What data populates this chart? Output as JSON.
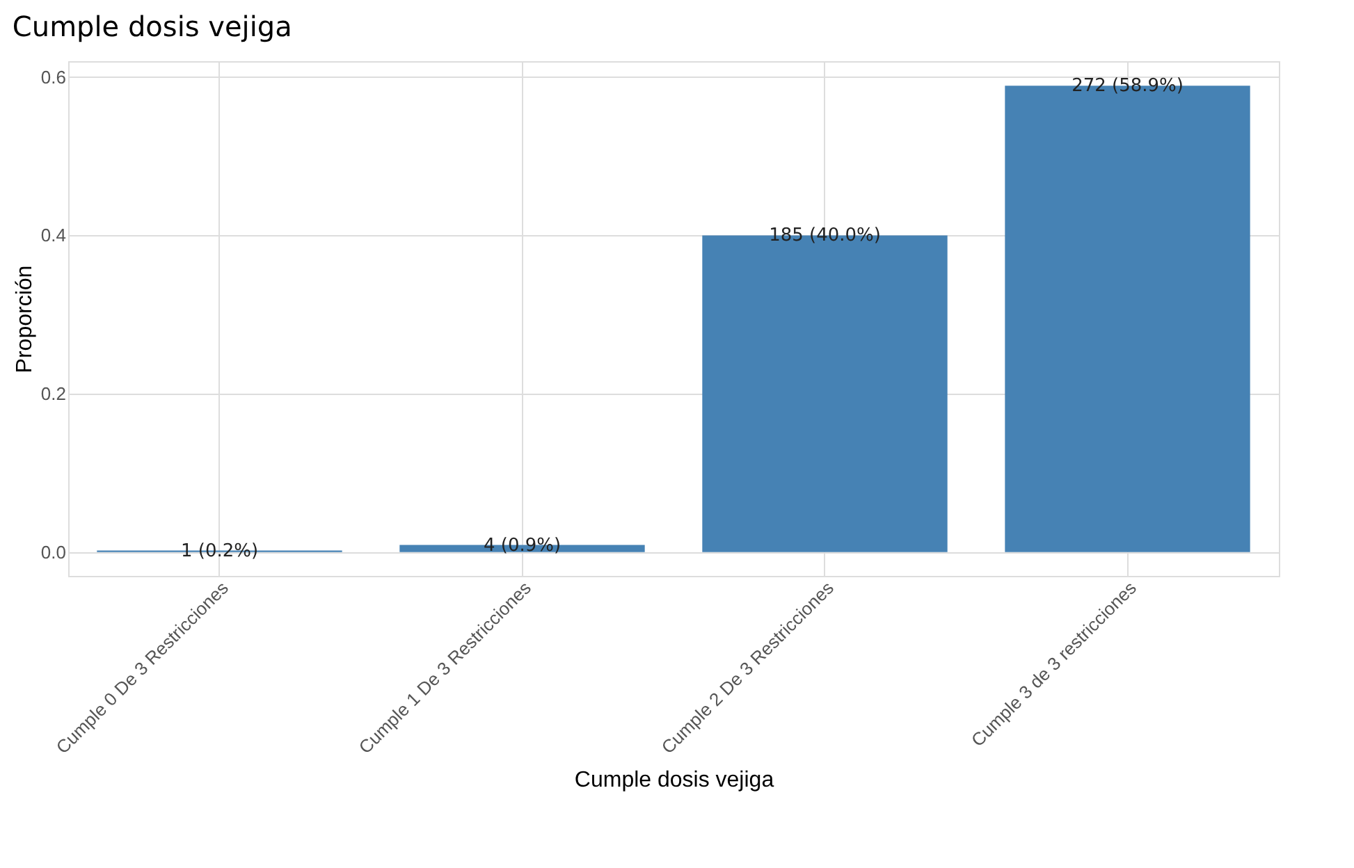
{
  "chart_data": {
    "type": "bar",
    "title": "Cumple dosis vejiga",
    "xlabel": "Cumple dosis vejiga",
    "ylabel": "Proporción",
    "categories": [
      "Cumple 0 De 3 Restricciones",
      "Cumple 1 De 3 Restricciones",
      "Cumple 2 De 3 Restricciones",
      "Cumple 3 de 3 restricciones"
    ],
    "values": [
      0.002,
      0.009,
      0.4,
      0.589
    ],
    "value_labels": [
      "1 (0.2%)",
      "4 (0.9%)",
      "185 (40.0%)",
      "272 (58.9%)"
    ],
    "color": "#4682b4",
    "ylim": [
      -0.03,
      0.62
    ],
    "yticks": [
      {
        "value": 0,
        "label": "0.0"
      },
      {
        "value": 0.2,
        "label": "0.2"
      },
      {
        "value": 0.4,
        "label": "0.4"
      },
      {
        "value": 0.6,
        "label": "0.6"
      }
    ],
    "grid": true
  }
}
